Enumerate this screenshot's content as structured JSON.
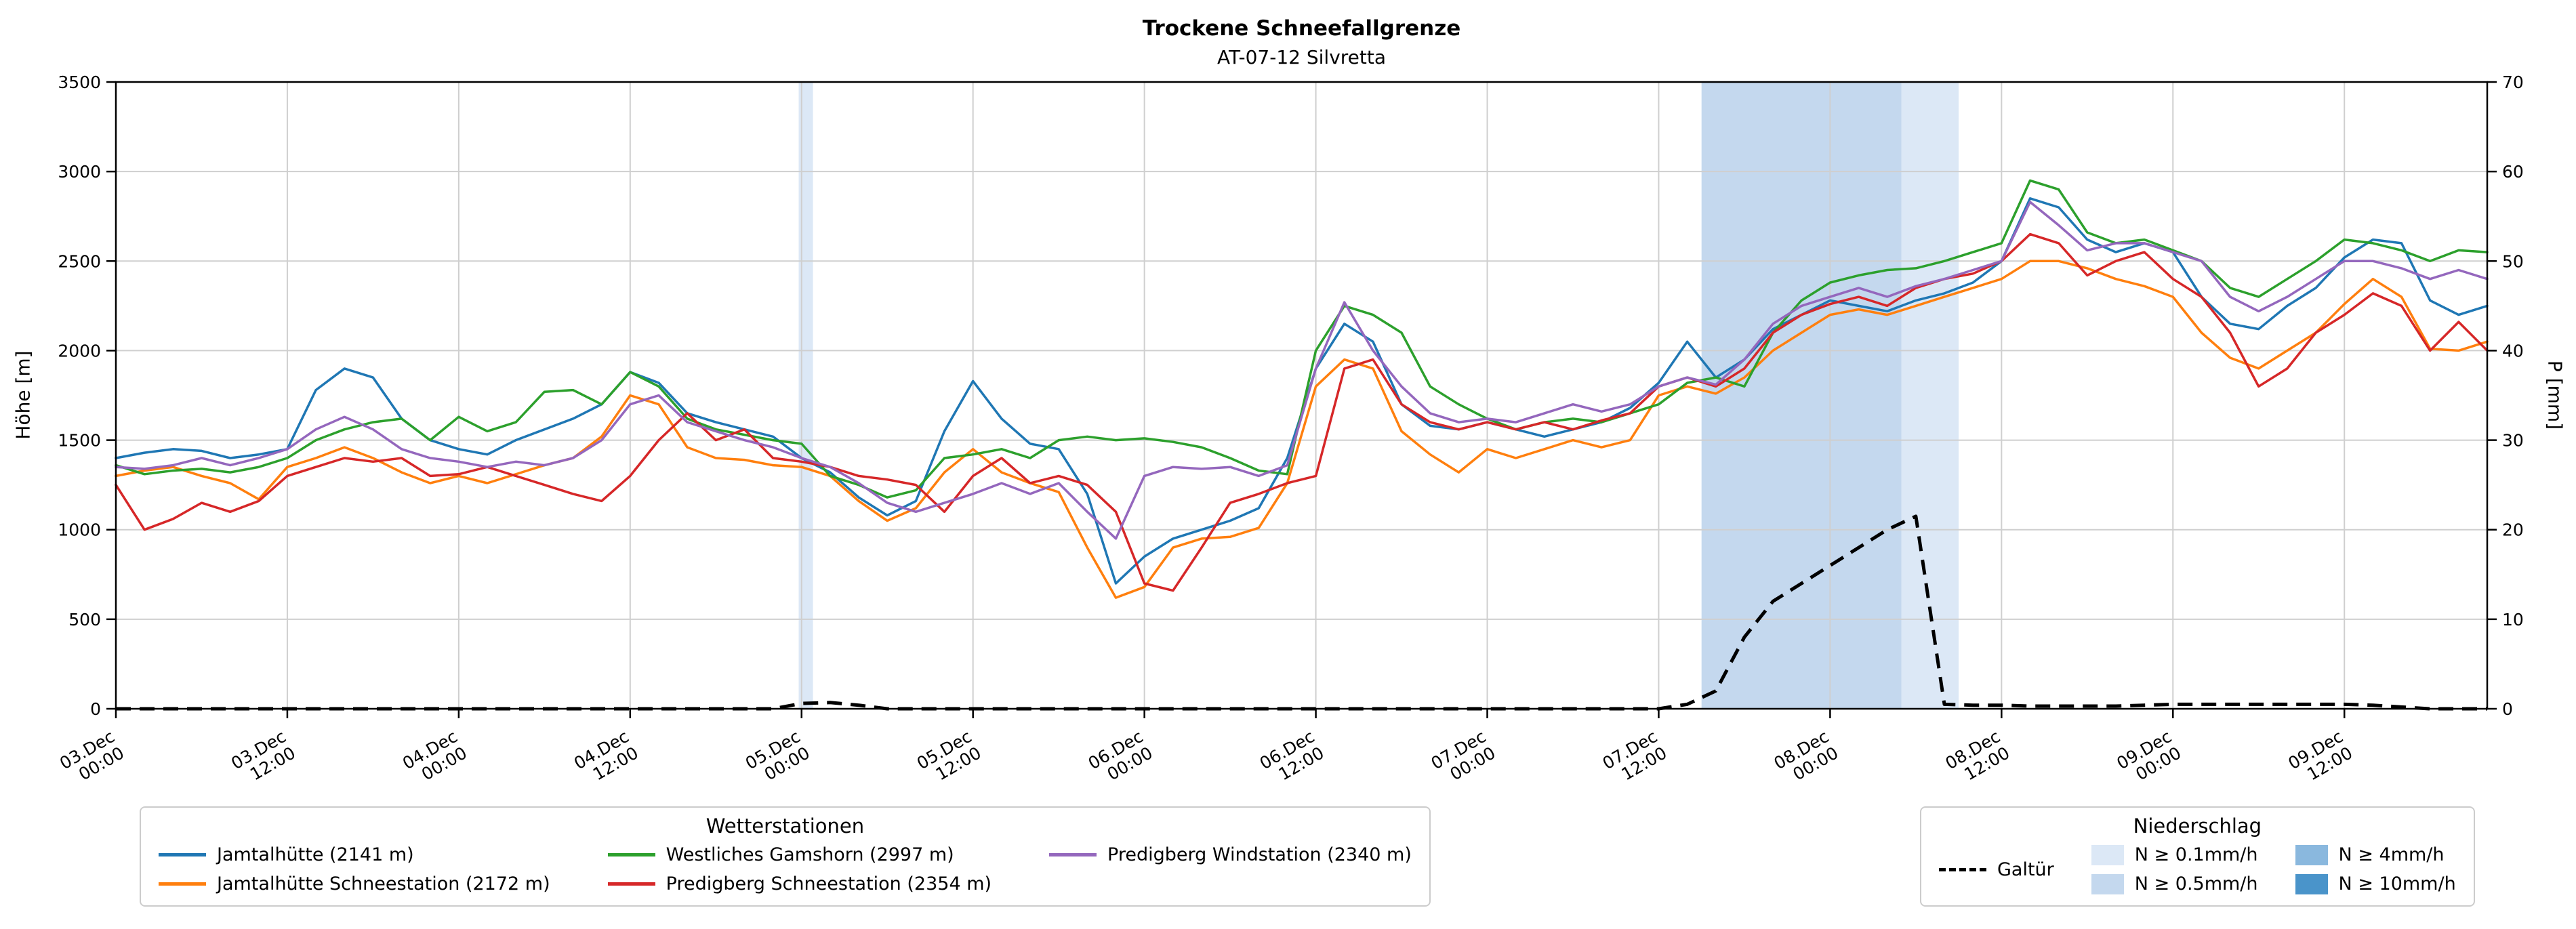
{
  "title": "Trockene Schneefallgrenze",
  "subtitle": "AT-07-12 Silvretta",
  "legend_stations": {
    "title": "Wetterstationen"
  },
  "legend_precip": {
    "title": "Niederschlag"
  },
  "chart_data": {
    "type": "line",
    "grid": true,
    "x_axis": {
      "unit": "hours since 03.Dec 00:00",
      "ticks": [
        {
          "h": 0,
          "l1": "03.Dec",
          "l2": "00:00"
        },
        {
          "h": 12,
          "l1": "03.Dec",
          "l2": "12:00"
        },
        {
          "h": 24,
          "l1": "04.Dec",
          "l2": "00:00"
        },
        {
          "h": 36,
          "l1": "04.Dec",
          "l2": "12:00"
        },
        {
          "h": 48,
          "l1": "05.Dec",
          "l2": "00:00"
        },
        {
          "h": 60,
          "l1": "05.Dec",
          "l2": "12:00"
        },
        {
          "h": 72,
          "l1": "06.Dec",
          "l2": "00:00"
        },
        {
          "h": 84,
          "l1": "06.Dec",
          "l2": "12:00"
        },
        {
          "h": 96,
          "l1": "07.Dec",
          "l2": "00:00"
        },
        {
          "h": 108,
          "l1": "07.Dec",
          "l2": "12:00"
        },
        {
          "h": 120,
          "l1": "08.Dec",
          "l2": "00:00"
        },
        {
          "h": 132,
          "l1": "08.Dec",
          "l2": "12:00"
        },
        {
          "h": 144,
          "l1": "09.Dec",
          "l2": "00:00"
        },
        {
          "h": 156,
          "l1": "09.Dec",
          "l2": "12:00"
        }
      ]
    },
    "y_left": {
      "label": "Höhe [m]",
      "min": 0,
      "max": 3500,
      "ticks": [
        0,
        500,
        1000,
        1500,
        2000,
        2500,
        3000,
        3500
      ]
    },
    "y_right": {
      "label": "P [mm]",
      "min": 0,
      "max": 70,
      "ticks": [
        0,
        10,
        20,
        30,
        40,
        50,
        60,
        70
      ]
    },
    "hours": [
      0,
      2,
      4,
      6,
      8,
      10,
      12,
      14,
      16,
      18,
      20,
      22,
      24,
      26,
      28,
      30,
      32,
      34,
      36,
      38,
      40,
      42,
      44,
      46,
      48,
      50,
      52,
      54,
      56,
      58,
      60,
      62,
      64,
      66,
      68,
      70,
      72,
      74,
      76,
      78,
      80,
      82,
      84,
      86,
      88,
      90,
      92,
      94,
      96,
      98,
      100,
      102,
      104,
      106,
      108,
      110,
      112,
      114,
      116,
      118,
      120,
      122,
      124,
      126,
      128,
      130,
      132,
      134,
      136,
      138,
      140,
      142,
      144,
      146,
      148,
      150,
      152,
      154,
      156,
      158,
      160,
      162,
      164,
      166
    ],
    "series": [
      {
        "name": "Jamtalhütte (2141 m)",
        "color": "#1f77b4",
        "axis": "left",
        "values": [
          1400,
          1430,
          1450,
          1440,
          1400,
          1420,
          1450,
          1780,
          1900,
          1850,
          1620,
          1500,
          1450,
          1420,
          1500,
          1560,
          1620,
          1700,
          1880,
          1820,
          1650,
          1600,
          1560,
          1520,
          1400,
          1320,
          1180,
          1080,
          1160,
          1550,
          1830,
          1620,
          1480,
          1450,
          1200,
          700,
          850,
          950,
          1000,
          1050,
          1120,
          1400,
          1900,
          2150,
          2050,
          1700,
          1580,
          1560,
          1600,
          1560,
          1520,
          1560,
          1600,
          1680,
          1820,
          2050,
          1850,
          1950,
          2120,
          2200,
          2280,
          2250,
          2220,
          2280,
          2320,
          2380,
          2500,
          2850,
          2800,
          2620,
          2550,
          2600,
          2550,
          2300,
          2150,
          2120,
          2250,
          2350,
          2520,
          2620,
          2600,
          2280,
          2200,
          2250
        ]
      },
      {
        "name": "Jamtalhütte Schneestation (2172 m)",
        "color": "#ff7f0e",
        "axis": "left",
        "values": [
          1300,
          1330,
          1350,
          1300,
          1260,
          1170,
          1350,
          1400,
          1460,
          1400,
          1320,
          1260,
          1300,
          1260,
          1310,
          1360,
          1400,
          1520,
          1750,
          1700,
          1460,
          1400,
          1390,
          1360,
          1350,
          1300,
          1160,
          1050,
          1120,
          1320,
          1450,
          1320,
          1260,
          1210,
          900,
          620,
          680,
          900,
          950,
          960,
          1010,
          1260,
          1800,
          1950,
          1900,
          1550,
          1420,
          1320,
          1450,
          1400,
          1450,
          1500,
          1460,
          1500,
          1750,
          1800,
          1760,
          1850,
          2000,
          2100,
          2200,
          2230,
          2200,
          2250,
          2300,
          2350,
          2400,
          2500,
          2500,
          2460,
          2400,
          2360,
          2300,
          2100,
          1960,
          1900,
          2000,
          2100,
          2260,
          2400,
          2300,
          2010,
          2000,
          2050
        ]
      },
      {
        "name": "Westliches Gamshorn (2997 m)",
        "color": "#2ca02c",
        "axis": "left",
        "values": [
          1360,
          1310,
          1330,
          1340,
          1320,
          1350,
          1400,
          1500,
          1560,
          1600,
          1620,
          1500,
          1630,
          1550,
          1600,
          1770,
          1780,
          1700,
          1880,
          1800,
          1620,
          1560,
          1530,
          1500,
          1480,
          1300,
          1250,
          1180,
          1220,
          1400,
          1420,
          1450,
          1400,
          1500,
          1520,
          1500,
          1510,
          1490,
          1460,
          1400,
          1330,
          1310,
          2000,
          2250,
          2200,
          2100,
          1800,
          1700,
          1620,
          1560,
          1600,
          1620,
          1600,
          1650,
          1700,
          1820,
          1850,
          1800,
          2100,
          2280,
          2380,
          2420,
          2450,
          2460,
          2500,
          2550,
          2600,
          2950,
          2900,
          2660,
          2600,
          2620,
          2560,
          2500,
          2350,
          2300,
          2400,
          2500,
          2620,
          2600,
          2560,
          2500,
          2560,
          2550
        ]
      },
      {
        "name": "Predigberg Schneestation (2354 m)",
        "color": "#d62728",
        "axis": "left",
        "values": [
          1250,
          1000,
          1060,
          1150,
          1100,
          1160,
          1300,
          1350,
          1400,
          1380,
          1400,
          1300,
          1310,
          1350,
          1300,
          1250,
          1200,
          1160,
          1300,
          1500,
          1650,
          1500,
          1560,
          1400,
          1380,
          1350,
          1300,
          1280,
          1250,
          1100,
          1300,
          1400,
          1260,
          1300,
          1250,
          1100,
          700,
          660,
          900,
          1150,
          1200,
          1260,
          1300,
          1900,
          1950,
          1700,
          1600,
          1560,
          1600,
          1560,
          1600,
          1560,
          1610,
          1650,
          1800,
          1850,
          1800,
          1900,
          2100,
          2200,
          2260,
          2300,
          2250,
          2350,
          2400,
          2430,
          2500,
          2650,
          2600,
          2420,
          2500,
          2550,
          2400,
          2300,
          2100,
          1800,
          1900,
          2100,
          2200,
          2320,
          2250,
          2000,
          2160,
          2000
        ]
      },
      {
        "name": "Predigberg Windstation (2340 m)",
        "color": "#9467bd",
        "axis": "left",
        "values": [
          1350,
          1340,
          1360,
          1400,
          1360,
          1400,
          1450,
          1560,
          1630,
          1560,
          1450,
          1400,
          1380,
          1350,
          1380,
          1360,
          1400,
          1500,
          1700,
          1750,
          1600,
          1550,
          1500,
          1460,
          1400,
          1350,
          1260,
          1150,
          1100,
          1150,
          1200,
          1260,
          1200,
          1260,
          1100,
          950,
          1300,
          1350,
          1340,
          1350,
          1300,
          1360,
          1900,
          2270,
          2000,
          1800,
          1650,
          1600,
          1620,
          1600,
          1650,
          1700,
          1660,
          1700,
          1800,
          1850,
          1810,
          1950,
          2150,
          2250,
          2300,
          2350,
          2300,
          2360,
          2400,
          2450,
          2500,
          2830,
          2700,
          2560,
          2600,
          2600,
          2550,
          2500,
          2300,
          2220,
          2300,
          2400,
          2500,
          2500,
          2460,
          2400,
          2450,
          2400
        ]
      }
    ],
    "precip_series": {
      "name": "Galtür",
      "color": "#000000",
      "style": "dashed",
      "axis": "right",
      "values": [
        0,
        0,
        0,
        0,
        0,
        0,
        0,
        0,
        0,
        0,
        0,
        0,
        0,
        0,
        0,
        0,
        0,
        0,
        0,
        0,
        0,
        0,
        0,
        0,
        0.6,
        0.7,
        0.4,
        0,
        0,
        0,
        0,
        0,
        0,
        0,
        0,
        0,
        0,
        0,
        0,
        0,
        0,
        0,
        0,
        0,
        0,
        0,
        0,
        0,
        0,
        0,
        0,
        0,
        0,
        0,
        0,
        0.5,
        2,
        8,
        12,
        14,
        16,
        18,
        20,
        21.5,
        0.5,
        0.4,
        0.4,
        0.3,
        0.3,
        0.3,
        0.3,
        0.4,
        0.5,
        0.5,
        0.5,
        0.5,
        0.5,
        0.5,
        0.5,
        0.4,
        0.2,
        0,
        0,
        0
      ]
    },
    "bands": [
      {
        "from_h": 47.8,
        "to_h": 48.8,
        "level": "0.1"
      },
      {
        "from_h": 111,
        "to_h": 125,
        "level": "0.5"
      },
      {
        "from_h": 125,
        "to_h": 129,
        "level": "0.1"
      }
    ],
    "band_levels": [
      {
        "key": "0.1",
        "label": "N ≥ 0.1mm/h",
        "color": "#dce8f6"
      },
      {
        "key": "0.5",
        "label": "N ≥ 0.5mm/h",
        "color": "#c4d8ee"
      },
      {
        "key": "4",
        "label": "N ≥ 4mm/h",
        "color": "#8ab8de"
      },
      {
        "key": "10",
        "label": "N ≥ 10mm/h",
        "color": "#4a94ca"
      }
    ]
  }
}
